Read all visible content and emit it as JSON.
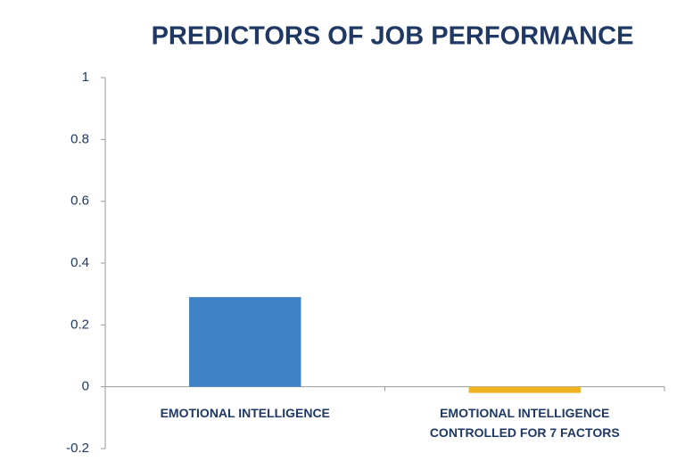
{
  "chart_data": {
    "type": "bar",
    "title": "PREDICTORS OF JOB PERFORMANCE",
    "categories": [
      "EMOTIONAL INTELLIGENCE",
      "EMOTIONAL INTELLIGENCE CONTROLLED FOR 7 FACTORS"
    ],
    "values": [
      0.29,
      -0.02
    ],
    "colors": [
      "#3f83c6",
      "#f0b323"
    ],
    "ylim": [
      -0.2,
      1
    ],
    "yticks": [
      -0.2,
      0,
      0.2,
      0.4,
      0.6,
      0.8,
      1
    ],
    "grid": false
  }
}
